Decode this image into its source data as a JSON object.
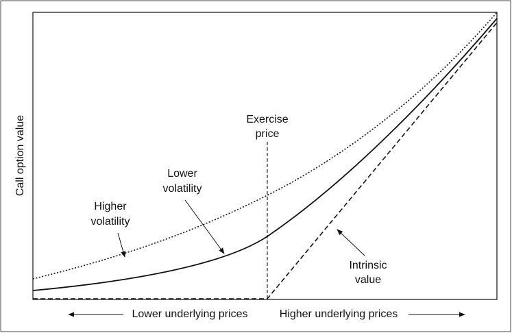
{
  "diagram": {
    "y_axis_label": "Call option value",
    "labels": {
      "exercise_price": [
        "Exercise",
        "price"
      ],
      "lower_volatility": [
        "Lower",
        "volatility"
      ],
      "higher_volatility": [
        "Higher",
        "volatility"
      ],
      "intrinsic_value": [
        "Intrinsic",
        "value"
      ]
    },
    "x_axis": {
      "left": "Lower underlying prices",
      "right": "Higher underlying prices"
    }
  }
}
